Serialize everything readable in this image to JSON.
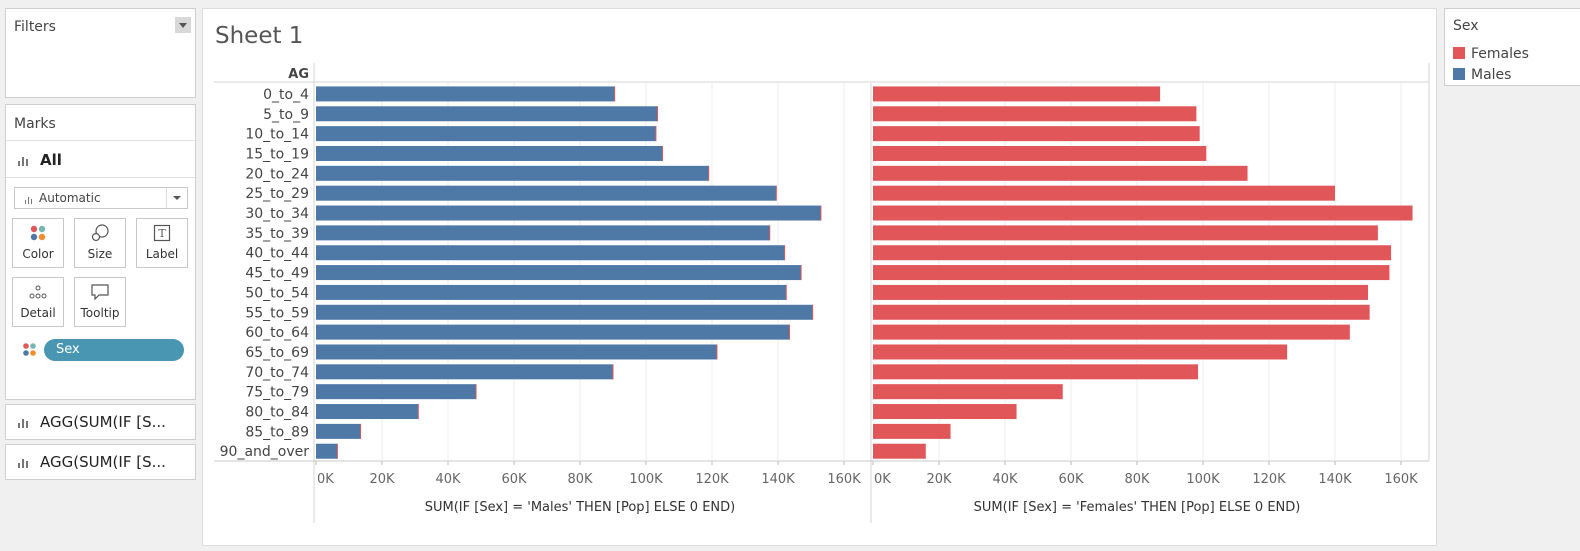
{
  "filters": {
    "title": "Filters"
  },
  "marks": {
    "title": "Marks",
    "all_label": "All",
    "mark_type": "Automatic",
    "buttons": [
      "Color",
      "Size",
      "Label",
      "Detail",
      "Tooltip"
    ],
    "pill": "Sex",
    "shelf_items": [
      "AGG(SUM(IF [S...",
      "AGG(SUM(IF [S..."
    ]
  },
  "sheet": {
    "title": "Sheet 1"
  },
  "legend": {
    "title": "Sex",
    "items": [
      {
        "label": "Females",
        "color": "#e15759"
      },
      {
        "label": "Males",
        "color": "#4e79a7"
      }
    ]
  },
  "chart_data": {
    "type": "bar",
    "orientation": "horizontal",
    "row_header": "AG",
    "categories": [
      "0_to_4",
      "5_to_9",
      "10_to_14",
      "15_to_19",
      "20_to_24",
      "25_to_29",
      "30_to_34",
      "35_to_39",
      "40_to_44",
      "45_to_49",
      "50_to_54",
      "55_to_59",
      "60_to_64",
      "65_to_69",
      "70_to_74",
      "75_to_79",
      "80_to_84",
      "85_to_89",
      "90_and_over"
    ],
    "panes": [
      {
        "series": "Males",
        "color": "#4e79a7",
        "xlabel": "SUM(IF [Sex] = 'Males' THEN [Pop] ELSE 0 END)",
        "xlim": [
          0,
          160000
        ],
        "ticks": [
          "0K",
          "20K",
          "40K",
          "60K",
          "80K",
          "100K",
          "120K",
          "140K",
          "160K"
        ],
        "values": [
          90500,
          103500,
          103000,
          105000,
          119000,
          139500,
          153000,
          137500,
          142000,
          147000,
          142500,
          150500,
          143500,
          121500,
          90000,
          48500,
          31000,
          13500,
          6500
        ]
      },
      {
        "series": "Females",
        "color": "#e15759",
        "xlabel": "SUM(IF [Sex] = 'Females' THEN [Pop] ELSE 0 END)",
        "xlim": [
          0,
          160000
        ],
        "ticks": [
          "0K",
          "20K",
          "40K",
          "60K",
          "80K",
          "100K",
          "120K",
          "140K",
          "160K"
        ],
        "values": [
          87000,
          98000,
          99000,
          101000,
          113500,
          140000,
          163500,
          153000,
          157000,
          156500,
          150000,
          150500,
          144500,
          125500,
          98500,
          57500,
          43500,
          23500,
          16000
        ]
      }
    ],
    "grid": true
  }
}
